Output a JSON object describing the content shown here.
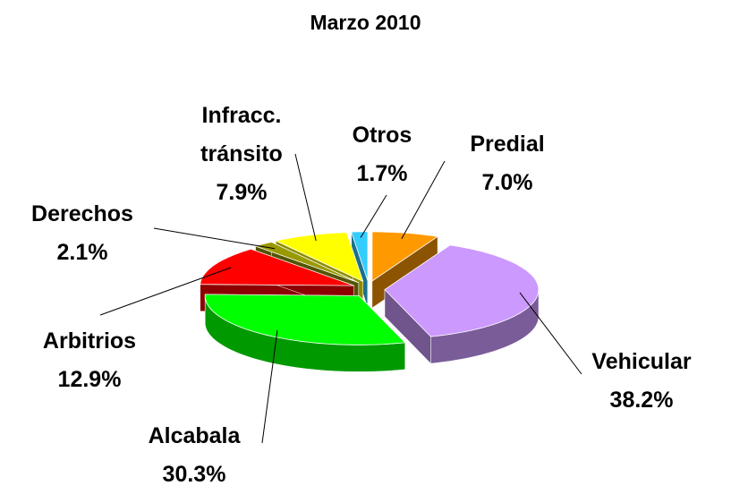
{
  "chart_data": {
    "type": "pie3d",
    "title": "Marzo 2010",
    "categories": [
      "Predial",
      "Vehicular",
      "Alcabala",
      "Arbitrios",
      "Derechos",
      "Infracc. tránsito",
      "Otros"
    ],
    "values": [
      7.0,
      38.2,
      30.3,
      12.9,
      2.1,
      7.9,
      1.7
    ],
    "value_labels": [
      "7.0%",
      "38.2%",
      "30.3%",
      "12.9%",
      "2.1%",
      "7.9%",
      "1.7%"
    ],
    "colors": [
      "#ff9900",
      "#cc99ff",
      "#00ff00",
      "#ff0000",
      "#999900",
      "#ffff00",
      "#33ccff"
    ]
  }
}
